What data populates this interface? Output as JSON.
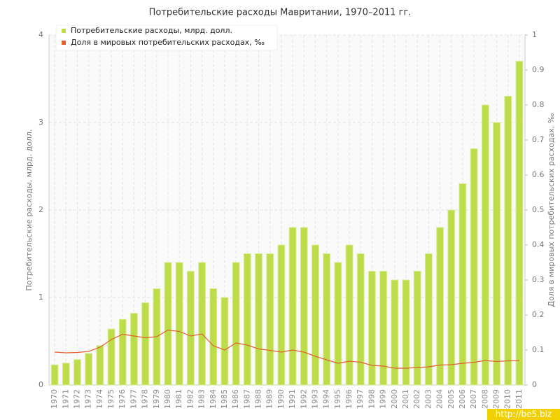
{
  "chart_data": {
    "type": "bar",
    "title": "Потребительские расходы Мавритании, 1970–2011 гг.",
    "y_label": "Потребительские расходы, млрд. долл.",
    "y2_label": "Доля в мировых потребительских расходах, ‰",
    "watermark": "http://be5.biz",
    "categories": [
      "1970",
      "1971",
      "1972",
      "1973",
      "1974",
      "1975",
      "1976",
      "1977",
      "1978",
      "1979",
      "1980",
      "1981",
      "1982",
      "1983",
      "1984",
      "1985",
      "1986",
      "1987",
      "1988",
      "1989",
      "1990",
      "1991",
      "1992",
      "1993",
      "1994",
      "1995",
      "1996",
      "1997",
      "1998",
      "1999",
      "2000",
      "2001",
      "2002",
      "2003",
      "2004",
      "2005",
      "2006",
      "2007",
      "2008",
      "2009",
      "2010",
      "2011"
    ],
    "series": [
      {
        "name": "Потребительские расходы, млрд. долл.",
        "type": "bar",
        "color": "#bcdc4a",
        "values": [
          0.23,
          0.25,
          0.29,
          0.36,
          0.45,
          0.64,
          0.75,
          0.82,
          0.94,
          1.1,
          1.4,
          1.4,
          1.3,
          1.4,
          1.1,
          1.0,
          1.4,
          1.5,
          1.5,
          1.5,
          1.6,
          1.8,
          1.8,
          1.6,
          1.5,
          1.4,
          1.6,
          1.5,
          1.3,
          1.3,
          1.2,
          1.2,
          1.3,
          1.5,
          1.8,
          2.0,
          2.3,
          2.7,
          3.2,
          3.0,
          3.3,
          3.7
        ]
      },
      {
        "name": "Доля в мировых потребительских расходах, ‰",
        "type": "line",
        "axis": "y2",
        "color": "#e0602e",
        "values": [
          0.094,
          0.092,
          0.093,
          0.096,
          0.108,
          0.13,
          0.145,
          0.14,
          0.135,
          0.138,
          0.157,
          0.153,
          0.14,
          0.146,
          0.112,
          0.1,
          0.12,
          0.114,
          0.103,
          0.099,
          0.094,
          0.1,
          0.094,
          0.082,
          0.072,
          0.062,
          0.068,
          0.065,
          0.056,
          0.054,
          0.048,
          0.048,
          0.05,
          0.052,
          0.057,
          0.058,
          0.062,
          0.065,
          0.07,
          0.067,
          0.069,
          0.07
        ]
      }
    ],
    "ylim": [
      0,
      4
    ],
    "yticks": [
      0,
      1,
      2,
      3,
      4
    ],
    "y2lim": [
      0,
      1
    ],
    "y2ticks": [
      0,
      0.1,
      0.2,
      0.3,
      0.4,
      0.5,
      0.6,
      0.7,
      0.8,
      0.9,
      1
    ],
    "grid": true,
    "legend": "top-left"
  }
}
